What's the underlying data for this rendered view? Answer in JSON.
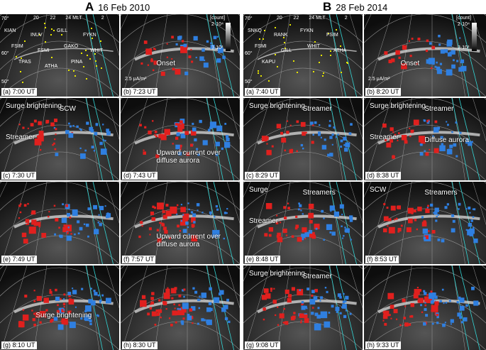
{
  "figure": {
    "col_a": {
      "letter": "A",
      "date": "16 Feb 2010"
    },
    "col_b": {
      "letter": "B",
      "date": "28 Feb 2014"
    }
  },
  "axis_labels": {
    "mlt_20": "20",
    "mlt_22": "22",
    "mlt_24": "24 MLT",
    "mlt_2": "2",
    "lat_70": "70°",
    "lat_60": "60°",
    "lat_50": "50°"
  },
  "stations_a": [
    "KIAN",
    "INUV",
    "GILL",
    "FYKN",
    "FSIM",
    "FSMI",
    "GAKO",
    "WHIT",
    "TPAS",
    "ATHA",
    "PINA"
  ],
  "stations_b": [
    "SNKQ",
    "RANK",
    "FYKN",
    "FSIM",
    "FSMI",
    "GILL",
    "WHIT",
    "ATHA",
    "KAPU"
  ],
  "colorbar": {
    "unit": "[count]",
    "high": "2·10⁴",
    "low": "3·10³"
  },
  "scale_bar": "2.5 μA/m²",
  "panels_a": [
    {
      "label": "(a) 7:00 UT",
      "annotations": []
    },
    {
      "label": "(b) 7:23 UT",
      "annotations": [
        "Onset"
      ]
    },
    {
      "label": "(c) 7:30 UT",
      "annotations": [
        "Surge brightening",
        "SCW",
        "Streamer"
      ]
    },
    {
      "label": "(d) 7:43 UT",
      "annotations": [
        "Upward current over diffuse aurora"
      ]
    },
    {
      "label": "(e) 7:49 UT",
      "annotations": []
    },
    {
      "label": "(f) 7:57 UT",
      "annotations": [
        "Upward current over diffuse aurora"
      ]
    },
    {
      "label": "(g) 8:10 UT",
      "annotations": [
        "Surge brightening"
      ]
    },
    {
      "label": "(h) 8:30 UT",
      "annotations": []
    }
  ],
  "panels_b": [
    {
      "label": "(a) 7:40 UT",
      "annotations": []
    },
    {
      "label": "(b) 8:20 UT",
      "annotations": [
        "Onset"
      ]
    },
    {
      "label": "(c) 8:29 UT",
      "annotations": [
        "Surge brightening",
        "Streamer"
      ]
    },
    {
      "label": "(d) 8:38 UT",
      "annotations": [
        "Surge brightening",
        "Streamer",
        "Streamer",
        "Diffuse aurora"
      ]
    },
    {
      "label": "(e) 8:48 UT",
      "annotations": [
        "Surge",
        "Streamers",
        "Streamer"
      ]
    },
    {
      "label": "(f) 8:53 UT",
      "annotations": [
        "SCW",
        "Streamers"
      ]
    },
    {
      "label": "(g) 9:08 UT",
      "annotations": [
        "Surge brightening",
        "Streamer"
      ]
    },
    {
      "label": "(h) 9:33 UT",
      "annotations": []
    }
  ]
}
